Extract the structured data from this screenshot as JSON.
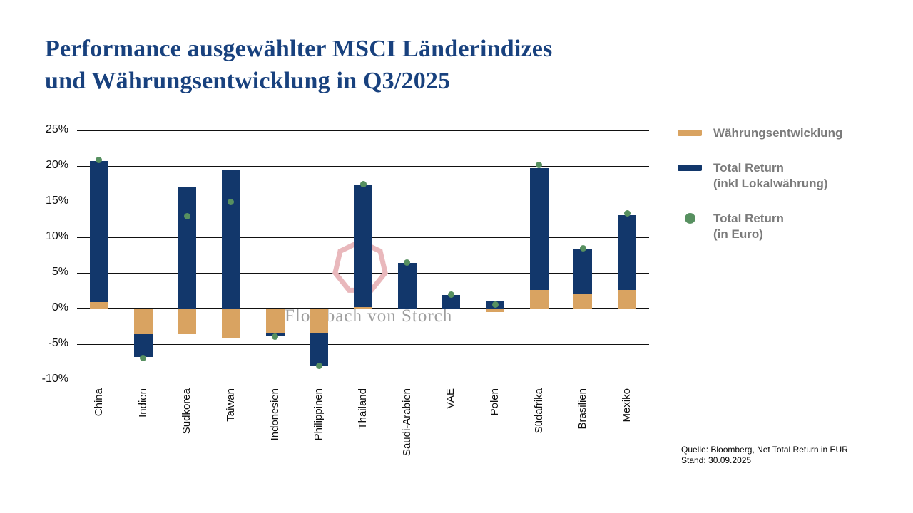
{
  "title": {
    "line1": "Performance ausgewählter MSCI Länderindizes",
    "line2": "und Währungsentwicklung in Q3/2025"
  },
  "legend": {
    "currency": {
      "label": "Währungsentwicklung"
    },
    "local": {
      "line1": "Total Return",
      "line2": "(inkl Lokalwährung)"
    },
    "euro": {
      "line1": "Total Return",
      "line2": "(in Euro)"
    }
  },
  "watermark": {
    "text": "Flossbach von Storch"
  },
  "source": {
    "line1": "Quelle: Bloomberg, Net Total Return in EUR",
    "line2": "Stand: 30.09.2025"
  },
  "colors": {
    "navy": "#12376B",
    "tan": "#D9A361",
    "green": "#579060",
    "title_blue": "#18417E",
    "legend_gray": "#7B7B7B",
    "watermark_pink": "#E9B8BC"
  },
  "chart_data": {
    "type": "bar",
    "stacked": true,
    "title": "Performance ausgewählter MSCI Länderindizes und Währungsentwicklung in Q3/2025",
    "categories": [
      "China",
      "Indien",
      "Südkorea",
      "Taiwan",
      "Indonesien",
      "Philippinen",
      "Thailand",
      "Saudi-Arabien",
      "VAE",
      "Polen",
      "Südafrika",
      "Brasilien",
      "Mexiko"
    ],
    "series": [
      {
        "name": "Währungsentwicklung",
        "type": "bar",
        "color": "#D9A361",
        "values": [
          0.9,
          -3.6,
          -3.6,
          -4.1,
          -3.4,
          -3.4,
          0.2,
          0.0,
          0.0,
          -0.5,
          2.6,
          2.1,
          2.6
        ]
      },
      {
        "name": "Total Return (inkl Lokalwährung)",
        "type": "bar",
        "color": "#12376B",
        "values": [
          19.8,
          -3.2,
          17.1,
          19.5,
          -0.5,
          -4.6,
          17.2,
          6.4,
          1.9,
          1.0,
          17.1,
          6.2,
          10.5
        ]
      },
      {
        "name": "Total Return (in Euro)",
        "type": "scatter",
        "color": "#579060",
        "values": [
          20.9,
          -6.9,
          13.0,
          15.0,
          -3.9,
          -8.0,
          17.5,
          6.5,
          2.0,
          0.6,
          20.2,
          8.5,
          13.4
        ]
      }
    ],
    "xlabel": "",
    "ylabel": "",
    "ylim": [
      -10,
      25
    ],
    "yticks": [
      25,
      20,
      15,
      10,
      5,
      0,
      -5,
      -10
    ],
    "ytick_labels": [
      "25%",
      "20%",
      "15%",
      "10%",
      "5%",
      "0%",
      "-5%",
      "-10%"
    ],
    "grid": true,
    "legend_position": "right"
  }
}
